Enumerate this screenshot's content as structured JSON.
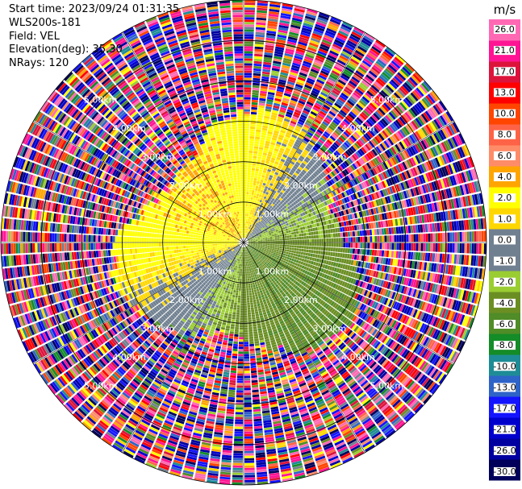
{
  "info": {
    "start_time": "Start time: 2023/09/24 01:31:35",
    "instrument": "WLS200s-181",
    "field": "Field: VEL",
    "elevation": "Elevation(deg): 35.30",
    "nrays": "NRays: 120"
  },
  "chart_data": {
    "type": "ppi",
    "field": "VEL",
    "n_rays": 120,
    "max_range_km": 6.0,
    "range_rings_km": [
      1,
      2,
      3,
      4,
      5,
      6
    ],
    "range_labels": [
      "1.00km",
      "1.00km",
      "1.00km",
      "1.00km",
      "2.00km",
      "2.00km",
      "2.00km",
      "2.00km",
      "3.00km",
      "3.00km",
      "3.00km",
      "3.00km",
      "4.00km",
      "4.00km",
      "4.00km",
      "4.00km",
      "5.00km",
      "5.00km",
      "5.00km",
      "5.00km"
    ],
    "range_label_rings": [
      1,
      1,
      1,
      1,
      2,
      2,
      2,
      2,
      3,
      3,
      3,
      3,
      4,
      4,
      4,
      4,
      5,
      5,
      5,
      5
    ],
    "range_label_quadrants": [
      "nw",
      "ne",
      "se",
      "sw",
      "nw",
      "ne",
      "se",
      "sw",
      "nw",
      "ne",
      "se",
      "sw",
      "nw",
      "ne",
      "se",
      "sw",
      "nw",
      "ne",
      "se",
      "sw"
    ],
    "colorbar": {
      "unit": "m/s",
      "ticks": [
        "26.0",
        "21.0",
        "17.0",
        "13.0",
        "10.0",
        "8.0",
        "6.0",
        "4.0",
        "2.0",
        "1.0",
        "0.0",
        "-1.0",
        "-2.0",
        "-4.0",
        "-6.0",
        "-8.0",
        "-10.0",
        "-13.0",
        "-17.0",
        "-21.0",
        "-26.0",
        "-30.0"
      ],
      "bounds": [
        -30,
        -26,
        -21,
        -17,
        -13,
        -10,
        -8,
        -6,
        -4,
        -2,
        -1,
        0,
        1,
        2,
        4,
        6,
        8,
        10,
        13,
        17,
        21,
        26,
        30
      ],
      "colors": [
        "#00005a",
        "#0000a0",
        "#0000cd",
        "#1414ff",
        "#2e64c8",
        "#1e8c96",
        "#148c28",
        "#508c28",
        "#6b8e23",
        "#9acd32",
        "#708090",
        "#708090",
        "#ffd700",
        "#ffff00",
        "#ffa500",
        "#ff8c69",
        "#ff6347",
        "#ff4500",
        "#ff0000",
        "#dc143c",
        "#ff1493",
        "#ff69b4"
      ]
    },
    "valid_region": {
      "inner_edge_km": 3.0,
      "outer_start_km": 3.1
    }
  }
}
